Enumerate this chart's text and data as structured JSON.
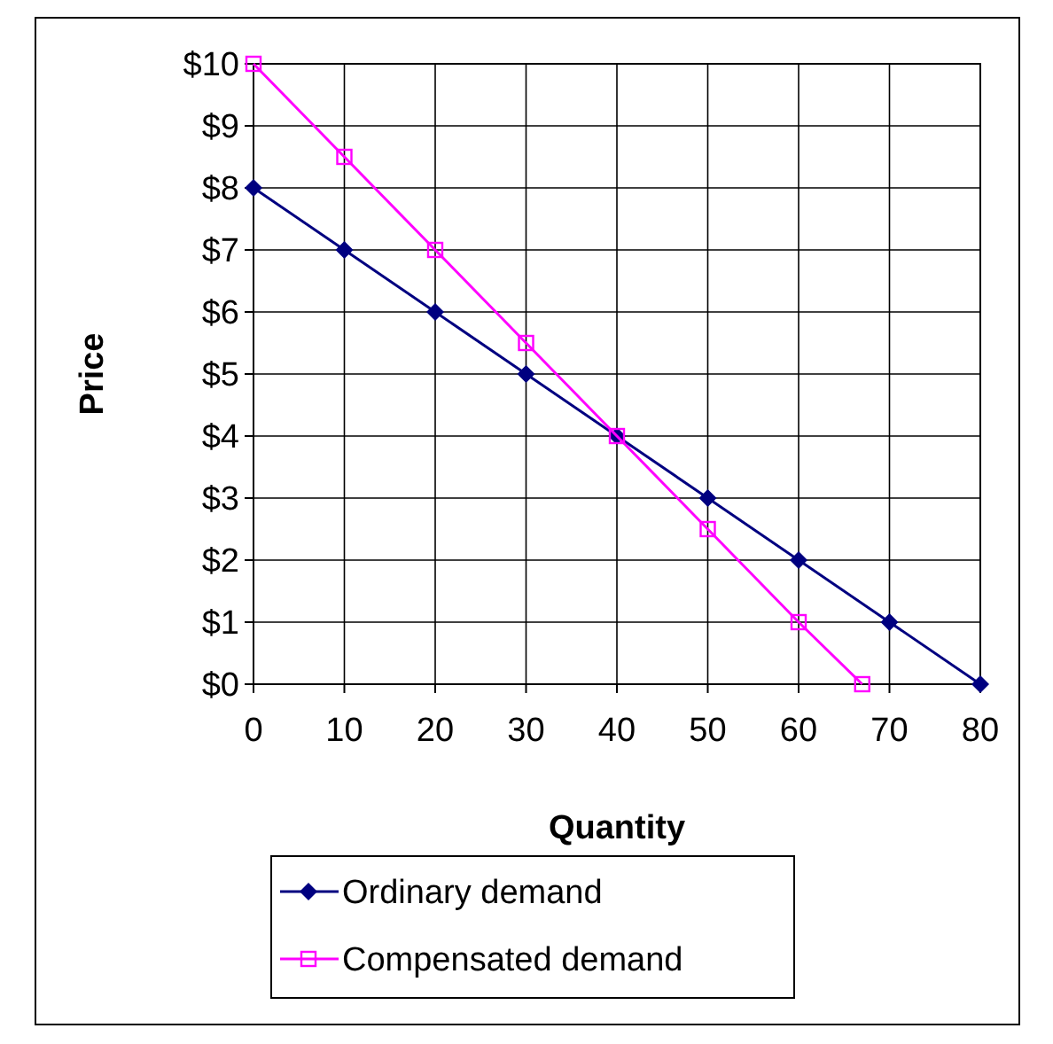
{
  "chart_data": {
    "type": "line",
    "xlabel": "Quantity",
    "ylabel": "Price",
    "x": [
      0,
      10,
      20,
      30,
      40,
      50,
      60,
      70,
      80
    ],
    "series": [
      {
        "name": "Ordinary demand",
        "color": "#000080",
        "marker": "diamond",
        "values": [
          8,
          7,
          6,
          5,
          4,
          3,
          2,
          1,
          0
        ]
      },
      {
        "name": "Compensated demand",
        "color": "#ff00ff",
        "marker": "square",
        "x": [
          0,
          10,
          20,
          30,
          40,
          50,
          60,
          67
        ],
        "values": [
          10,
          8.5,
          7,
          5.5,
          4,
          2.5,
          1,
          0
        ]
      }
    ],
    "xlim": [
      0,
      80
    ],
    "xticks": [
      0,
      10,
      20,
      30,
      40,
      50,
      60,
      70,
      80
    ],
    "ylim": [
      0,
      10
    ],
    "yticks": [
      {
        "value": 0,
        "label": "$0"
      },
      {
        "value": 1,
        "label": "$1"
      },
      {
        "value": 2,
        "label": "$2"
      },
      {
        "value": 3,
        "label": "$3"
      },
      {
        "value": 4,
        "label": "$4"
      },
      {
        "value": 5,
        "label": "$5"
      },
      {
        "value": 6,
        "label": "$6"
      },
      {
        "value": 7,
        "label": "$7"
      },
      {
        "value": 8,
        "label": "$8"
      },
      {
        "value": 9,
        "label": "$9"
      },
      {
        "value": 10,
        "label": "$10"
      }
    ],
    "grid": true,
    "legend": "bottom"
  }
}
